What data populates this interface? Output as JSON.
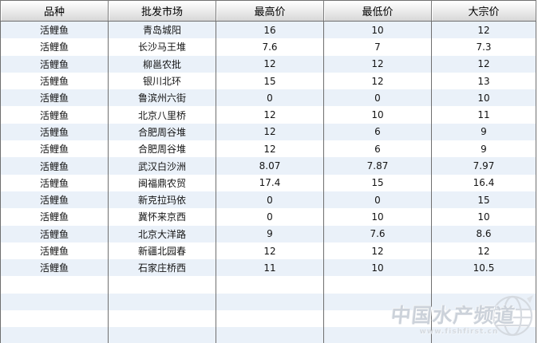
{
  "chart_data": {
    "type": "table",
    "title": "",
    "columns": [
      "品种",
      "批发市场",
      "最高价",
      "最低价",
      "大宗价"
    ],
    "rows": [
      [
        "活鲤鱼",
        "青岛城阳",
        "16",
        "10",
        "12"
      ],
      [
        "活鲤鱼",
        "长沙马王堆",
        "7.6",
        "7",
        "7.3"
      ],
      [
        "活鲤鱼",
        "柳邕农批",
        "12",
        "12",
        "12"
      ],
      [
        "活鲤鱼",
        "银川北环",
        "15",
        "12",
        "13"
      ],
      [
        "活鲤鱼",
        "鲁滨州六街",
        "0",
        "0",
        "10"
      ],
      [
        "活鲤鱼",
        "北京八里桥",
        "12",
        "10",
        "11"
      ],
      [
        "活鲤鱼",
        "合肥周谷堆",
        "12",
        "6",
        "9"
      ],
      [
        "活鲤鱼",
        "合肥周谷堆",
        "12",
        "6",
        "9"
      ],
      [
        "活鲤鱼",
        "武汉白沙洲",
        "8.07",
        "7.87",
        "7.97"
      ],
      [
        "活鲤鱼",
        "闽福鼎农贸",
        "17.4",
        "15",
        "16.4"
      ],
      [
        "活鲤鱼",
        "新克拉玛依",
        "0",
        "0",
        "15"
      ],
      [
        "活鲤鱼",
        "冀怀来京西",
        "0",
        "10",
        "10"
      ],
      [
        "活鲤鱼",
        "北京大洋路",
        "9",
        "7.6",
        "8.6"
      ],
      [
        "活鲤鱼",
        "新疆北园春",
        "12",
        "12",
        "12"
      ],
      [
        "活鲤鱼",
        "石家庄桥西",
        "11",
        "10",
        "10.5"
      ]
    ],
    "empty_trailing_rows": 4,
    "grid": "vertical-only",
    "row_stripe_colors": [
      "#eaf1f9",
      "#ffffff"
    ]
  },
  "watermark": {
    "title": "中国水产频道",
    "url": "www.fishfirst.cn"
  },
  "colors": {
    "border": "#6f6f6f",
    "header_gradient_top": "#ffffff",
    "header_gradient_bottom": "#d6d6d6",
    "row_alt": "#eaf1f9",
    "text": "#141414",
    "watermark_text": "#ccd2da"
  }
}
